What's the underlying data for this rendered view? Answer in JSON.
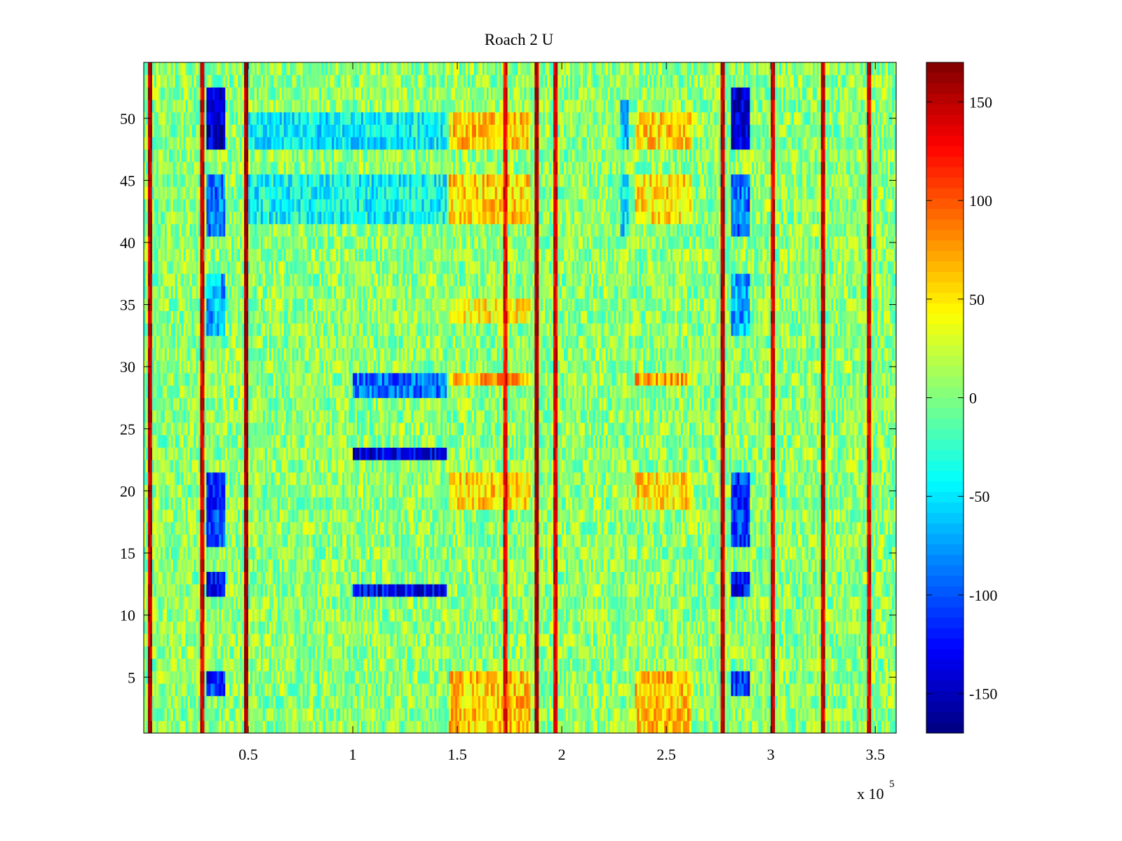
{
  "chart_data": {
    "type": "heatmap",
    "title": "Roach 2 U",
    "xlabel": "",
    "ylabel": "",
    "x_multiplier_label": "x 10",
    "x_multiplier_exponent": "5",
    "xlim": [
      0,
      360000
    ],
    "ylim": [
      0.5,
      54.5
    ],
    "x_ticks": [
      50000,
      100000,
      150000,
      200000,
      250000,
      300000,
      350000
    ],
    "x_tick_labels": [
      "0.5",
      "1",
      "1.5",
      "2",
      "2.5",
      "3",
      "3.5"
    ],
    "y_ticks": [
      5,
      10,
      15,
      20,
      25,
      30,
      35,
      40,
      45,
      50
    ],
    "y_tick_labels": [
      "5",
      "10",
      "15",
      "20",
      "25",
      "30",
      "35",
      "40",
      "45",
      "50"
    ],
    "colorbar": {
      "colormap": "jet",
      "clim": [
        -170,
        170
      ],
      "ticks": [
        150,
        100,
        50,
        0,
        -50,
        -100,
        -150
      ],
      "tick_labels": [
        "150",
        "100",
        "50",
        "0",
        "-50",
        "-100",
        "-150"
      ]
    },
    "rows": 54,
    "background_value": 5,
    "vertical_streaks": [
      {
        "x": 3000,
        "value": 150
      },
      {
        "x": 28000,
        "value": 140
      },
      {
        "x": 49000,
        "value": 160
      },
      {
        "x": 173000,
        "value": 130
      },
      {
        "x": 188000,
        "value": 160
      },
      {
        "x": 197000,
        "value": 140
      },
      {
        "x": 277000,
        "value": 150
      },
      {
        "x": 301000,
        "value": 140
      },
      {
        "x": 325000,
        "value": 150
      },
      {
        "x": 347000,
        "value": 140
      }
    ],
    "regions": [
      {
        "x": [
          30000,
          39000
        ],
        "y": [
          47.5,
          52.5
        ],
        "value": -150
      },
      {
        "x": [
          30000,
          39000
        ],
        "y": [
          40.5,
          45.5
        ],
        "value": -90
      },
      {
        "x": [
          30000,
          39000
        ],
        "y": [
          32.5,
          37.5
        ],
        "value": -70
      },
      {
        "x": [
          30000,
          39000
        ],
        "y": [
          15.5,
          21.5
        ],
        "value": -110
      },
      {
        "x": [
          30000,
          39000
        ],
        "y": [
          11.5,
          13.5
        ],
        "value": -130
      },
      {
        "x": [
          30000,
          39000
        ],
        "y": [
          3.5,
          5.5
        ],
        "value": -110
      },
      {
        "x": [
          281000,
          290000
        ],
        "y": [
          47.5,
          52.5
        ],
        "value": -150
      },
      {
        "x": [
          281000,
          290000
        ],
        "y": [
          40.5,
          45.5
        ],
        "value": -90
      },
      {
        "x": [
          281000,
          290000
        ],
        "y": [
          32.5,
          37.5
        ],
        "value": -70
      },
      {
        "x": [
          281000,
          290000
        ],
        "y": [
          15.5,
          21.5
        ],
        "value": -110
      },
      {
        "x": [
          281000,
          290000
        ],
        "y": [
          11.5,
          13.5
        ],
        "value": -130
      },
      {
        "x": [
          281000,
          290000
        ],
        "y": [
          3.5,
          5.5
        ],
        "value": -110
      },
      {
        "x": [
          50000,
          145000
        ],
        "y": [
          47.5,
          50.5
        ],
        "value": -45
      },
      {
        "x": [
          50000,
          145000
        ],
        "y": [
          41.5,
          45.5
        ],
        "value": -40
      },
      {
        "x": [
          100000,
          145000
        ],
        "y": [
          11.5,
          12.5
        ],
        "value": -130
      },
      {
        "x": [
          100000,
          145000
        ],
        "y": [
          22.5,
          23.5
        ],
        "value": -140
      },
      {
        "x": [
          100000,
          145000
        ],
        "y": [
          27.5,
          29.5
        ],
        "value": -90
      },
      {
        "x": [
          146000,
          185000
        ],
        "y": [
          47.5,
          50.5
        ],
        "value": 60
      },
      {
        "x": [
          146000,
          185000
        ],
        "y": [
          41.5,
          45.5
        ],
        "value": 55
      },
      {
        "x": [
          146000,
          185000
        ],
        "y": [
          33.5,
          35.5
        ],
        "value": 45
      },
      {
        "x": [
          146000,
          185000
        ],
        "y": [
          28.5,
          29.5
        ],
        "value": 75
      },
      {
        "x": [
          146000,
          185000
        ],
        "y": [
          18.5,
          21.5
        ],
        "value": 55
      },
      {
        "x": [
          146000,
          185000
        ],
        "y": [
          0.5,
          5.5
        ],
        "value": 60
      },
      {
        "x": [
          228000,
          232000
        ],
        "y": [
          47.5,
          51.5
        ],
        "value": -70
      },
      {
        "x": [
          228000,
          232000
        ],
        "y": [
          40.5,
          45.5
        ],
        "value": -50
      },
      {
        "x": [
          235000,
          262000
        ],
        "y": [
          47.5,
          50.5
        ],
        "value": 55
      },
      {
        "x": [
          235000,
          262000
        ],
        "y": [
          41.5,
          45.5
        ],
        "value": 50
      },
      {
        "x": [
          235000,
          262000
        ],
        "y": [
          28.5,
          29.5
        ],
        "value": 70
      },
      {
        "x": [
          235000,
          262000
        ],
        "y": [
          18.5,
          21.5
        ],
        "value": 50
      },
      {
        "x": [
          235000,
          262000
        ],
        "y": [
          0.5,
          5.5
        ],
        "value": 60
      }
    ]
  }
}
